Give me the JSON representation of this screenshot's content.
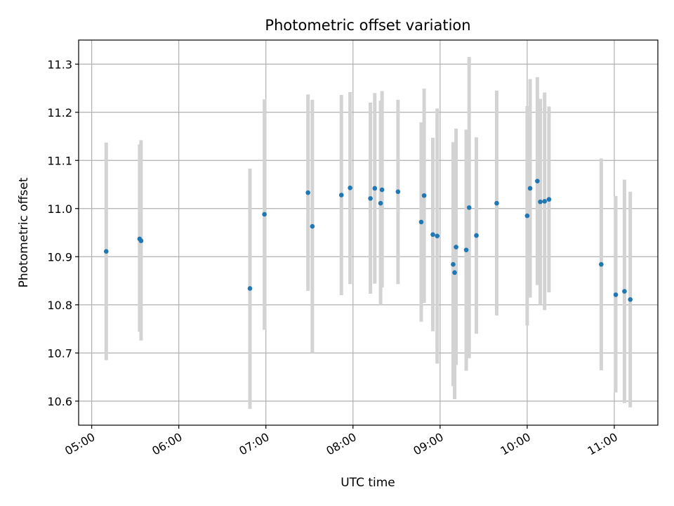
{
  "chart_data": {
    "type": "scatter",
    "title": "Photometric offset variation",
    "xlabel": "UTC time",
    "ylabel": "Photometric offset",
    "x_tick_labels": [
      "05:00",
      "06:00",
      "07:00",
      "08:00",
      "09:00",
      "10:00",
      "11:00"
    ],
    "y_tick_labels": [
      "10.6",
      "10.7",
      "10.8",
      "10.9",
      "11.0",
      "11.1",
      "11.2",
      "11.3"
    ],
    "xlim": [
      "04:51",
      "11:30"
    ],
    "ylim": [
      10.55,
      11.35
    ],
    "grid": true,
    "colors": {
      "point": "#1f77b4",
      "errorbar": "#d3d3d3",
      "grid": "#b0b0b0"
    },
    "points": [
      {
        "x": "05:10",
        "y": 10.911,
        "ylow": 10.685,
        "yhigh": 11.137
      },
      {
        "x": "05:33",
        "y": 10.937,
        "ylow": 10.744,
        "yhigh": 11.133
      },
      {
        "x": "05:34",
        "y": 10.933,
        "ylow": 10.726,
        "yhigh": 11.142
      },
      {
        "x": "06:49",
        "y": 10.834,
        "ylow": 10.584,
        "yhigh": 11.083
      },
      {
        "x": "06:59",
        "y": 10.988,
        "ylow": 10.748,
        "yhigh": 11.227
      },
      {
        "x": "07:29",
        "y": 11.033,
        "ylow": 10.829,
        "yhigh": 11.237
      },
      {
        "x": "07:32",
        "y": 10.963,
        "ylow": 10.7,
        "yhigh": 11.226
      },
      {
        "x": "07:52",
        "y": 11.028,
        "ylow": 10.82,
        "yhigh": 11.236
      },
      {
        "x": "07:58",
        "y": 11.043,
        "ylow": 10.843,
        "yhigh": 11.242
      },
      {
        "x": "08:12",
        "y": 11.021,
        "ylow": 10.823,
        "yhigh": 11.22
      },
      {
        "x": "08:15",
        "y": 11.042,
        "ylow": 10.844,
        "yhigh": 11.24
      },
      {
        "x": "08:19",
        "y": 11.011,
        "ylow": 10.8,
        "yhigh": 11.224
      },
      {
        "x": "08:20",
        "y": 11.039,
        "ylow": 10.836,
        "yhigh": 11.244
      },
      {
        "x": "08:31",
        "y": 11.035,
        "ylow": 10.843,
        "yhigh": 11.226
      },
      {
        "x": "08:47",
        "y": 10.972,
        "ylow": 10.765,
        "yhigh": 11.179
      },
      {
        "x": "08:49",
        "y": 11.027,
        "ylow": 10.804,
        "yhigh": 11.249
      },
      {
        "x": "08:55",
        "y": 10.946,
        "ylow": 10.745,
        "yhigh": 11.147
      },
      {
        "x": "08:58",
        "y": 10.943,
        "ylow": 10.678,
        "yhigh": 11.208
      },
      {
        "x": "09:09",
        "y": 10.884,
        "ylow": 10.631,
        "yhigh": 11.138
      },
      {
        "x": "09:10",
        "y": 10.867,
        "ylow": 10.604,
        "yhigh": 11.13
      },
      {
        "x": "09:11",
        "y": 10.92,
        "ylow": 10.675,
        "yhigh": 11.166
      },
      {
        "x": "09:18",
        "y": 10.914,
        "ylow": 10.663,
        "yhigh": 11.164
      },
      {
        "x": "09:20",
        "y": 11.002,
        "ylow": 10.689,
        "yhigh": 11.315
      },
      {
        "x": "09:25",
        "y": 10.944,
        "ylow": 10.74,
        "yhigh": 11.148
      },
      {
        "x": "09:39",
        "y": 11.011,
        "ylow": 10.778,
        "yhigh": 11.245
      },
      {
        "x": "10:00",
        "y": 10.985,
        "ylow": 10.757,
        "yhigh": 11.213
      },
      {
        "x": "10:02",
        "y": 11.042,
        "ylow": 10.815,
        "yhigh": 11.269
      },
      {
        "x": "10:07",
        "y": 11.057,
        "ylow": 10.841,
        "yhigh": 11.273
      },
      {
        "x": "10:09",
        "y": 11.014,
        "ylow": 10.8,
        "yhigh": 11.228
      },
      {
        "x": "10:12",
        "y": 11.015,
        "ylow": 10.789,
        "yhigh": 11.241
      },
      {
        "x": "10:15",
        "y": 11.019,
        "ylow": 10.826,
        "yhigh": 11.212
      },
      {
        "x": "10:51",
        "y": 10.884,
        "ylow": 10.664,
        "yhigh": 11.104
      },
      {
        "x": "11:01",
        "y": 10.821,
        "ylow": 10.618,
        "yhigh": 11.026
      },
      {
        "x": "11:07",
        "y": 10.828,
        "ylow": 10.596,
        "yhigh": 11.06
      },
      {
        "x": "11:11",
        "y": 10.811,
        "ylow": 10.587,
        "yhigh": 11.035
      }
    ]
  }
}
